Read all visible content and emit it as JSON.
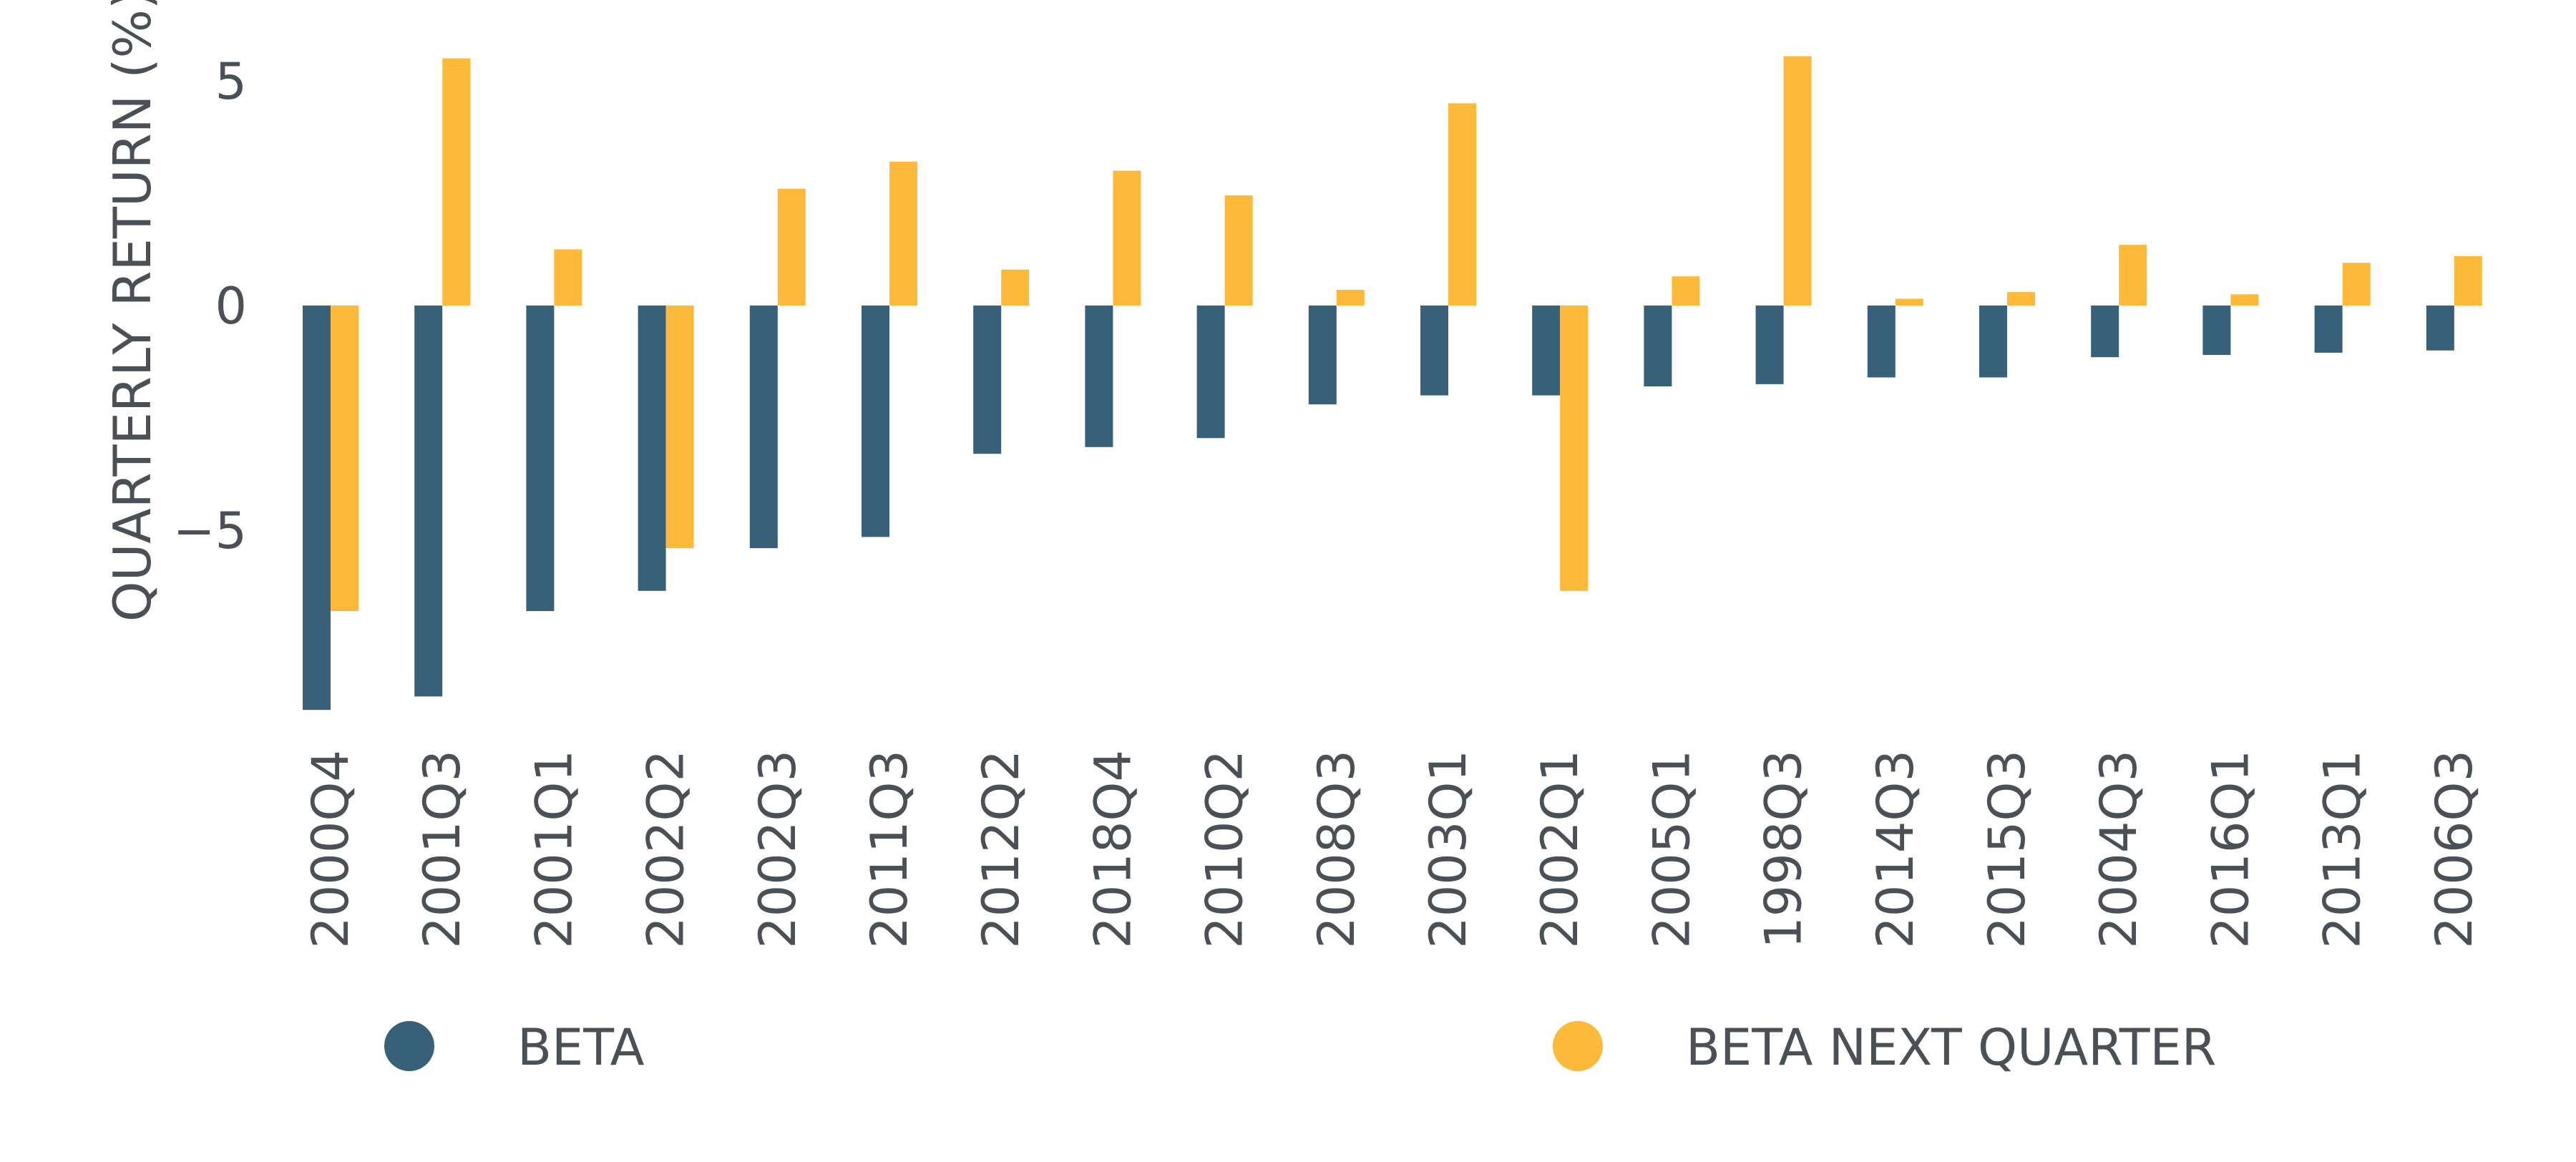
{
  "chart_data": {
    "type": "bar",
    "title": "",
    "xlabel": "",
    "ylabel": "QUARTERLY RETURN (%)",
    "ylim": [
      -9.5,
      6
    ],
    "yticks": [
      5,
      0,
      -5
    ],
    "ytick_labels": [
      "5",
      "0",
      "−5"
    ],
    "grid": false,
    "legend_position": "bottom",
    "categories": [
      "2000Q4",
      "2001Q3",
      "2001Q1",
      "2002Q2",
      "2002Q3",
      "2011Q3",
      "2012Q2",
      "2018Q4",
      "2010Q2",
      "2008Q3",
      "2003Q1",
      "2002Q1",
      "2005Q1",
      "1998Q3",
      "2014Q3",
      "2015Q3",
      "2004Q3",
      "2016Q1",
      "2013Q1",
      "2006Q3"
    ],
    "series": [
      {
        "name": "BETA",
        "color": "#386179",
        "values": [
          -9.0,
          -8.7,
          -6.8,
          -6.35,
          -5.4,
          -5.15,
          -3.3,
          -3.15,
          -2.95,
          -2.2,
          -2.0,
          -2.0,
          -1.8,
          -1.75,
          -1.6,
          -1.6,
          -1.15,
          -1.1,
          -1.05,
          -1.0
        ]
      },
      {
        "name": "BETA NEXT QUARTER",
        "color": "#FDB93A",
        "values": [
          -6.8,
          5.5,
          1.25,
          -5.4,
          2.6,
          3.2,
          0.8,
          3.0,
          2.45,
          0.35,
          4.5,
          -6.35,
          0.65,
          5.55,
          0.15,
          0.3,
          1.35,
          0.25,
          0.95,
          1.1
        ]
      }
    ]
  }
}
